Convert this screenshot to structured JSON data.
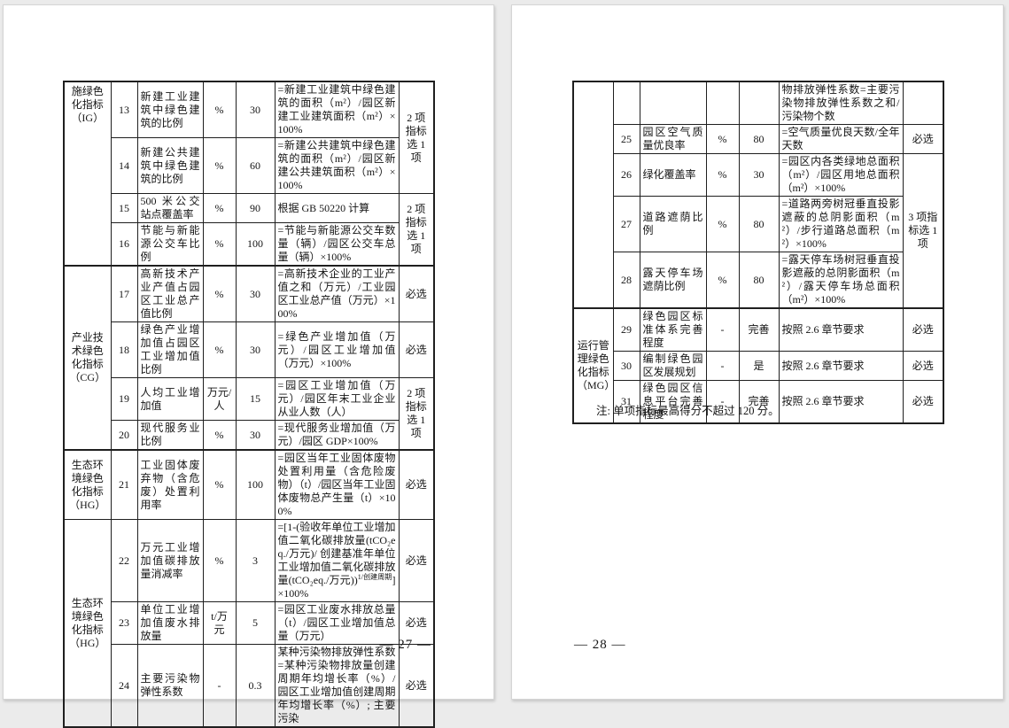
{
  "pages": {
    "left": {
      "page_number": "— 27 —",
      "table": {
        "rows": [
          {
            "cat": {
              "text": "施绿色化指标（IG）",
              "span": 4,
              "align": "top"
            },
            "num": "13",
            "name": "新建工业建筑中绿色建筑的比例",
            "unit": "%",
            "value": "30",
            "formula": "=新建工业建筑中绿色建筑的面积（m²）/园区新建工业建筑面积（m²）×100%",
            "sel": {
              "text": "2 项指标选 1 项",
              "span": 2
            }
          },
          {
            "num": "14",
            "name": "新建公共建筑中绿色建筑的比例",
            "unit": "%",
            "value": "60",
            "formula": "=新建公共建筑中绿色建筑的面积（m²）/园区新建公共建筑面积（m²）×100%"
          },
          {
            "num": "15",
            "name": "500 米公交站点覆盖率",
            "unit": "%",
            "value": "90",
            "formula": "根据 GB 50220 计算",
            "sel": {
              "text": "2 项指标选 1 项",
              "span": 2
            }
          },
          {
            "num": "16",
            "name": "节能与新能源公交车比例",
            "unit": "%",
            "value": "100",
            "formula": "=节能与新能源公交车数量（辆）/园区公交车总量（辆）×100%"
          },
          {
            "thick": true,
            "cat": {
              "text": "产业技术绿色化指标（CG）",
              "span": 4
            },
            "num": "17",
            "name": "高新技术产业产值占园区工业总产值比例",
            "unit": "%",
            "value": "30",
            "formula": "=高新技术企业的工业产值之和（万元）/工业园区工业总产值（万元）×100%",
            "sel": {
              "text": "必选"
            }
          },
          {
            "num": "18",
            "name": "绿色产业增加值占园区工业增加值比例",
            "unit": "%",
            "value": "30",
            "formula": "=绿色产业增加值（万元）/园区工业增加值（万元）×100%",
            "sel": {
              "text": "必选"
            }
          },
          {
            "num": "19",
            "name": "人均工业增加值",
            "unit": "万元/人",
            "value": "15",
            "formula": "=园区工业增加值（万元）/园区年末工业企业从业人数（人）",
            "sel": {
              "text": "2 项指标选 1 项",
              "span": 2
            }
          },
          {
            "num": "20",
            "name": "现代服务业比例",
            "unit": "%",
            "value": "30",
            "formula": "=现代服务业增加值（万元）/园区 GDP×100%"
          },
          {
            "thick": true,
            "cat": {
              "text": "生态环境绿色化指标（HG）",
              "span": 1
            },
            "num": "21",
            "name": "工业固体废弃物（含危废）处置利用率",
            "unit": "%",
            "value": "100",
            "formula": "=园区当年工业固体废物处置利用量（含危险废物）（t）/园区当年工业固体废物总产生量（t）×100%",
            "sel": {
              "text": "必选"
            }
          },
          {
            "cat": {
              "text": "生态环境绿色化指标（HG）",
              "span": 3
            },
            "num": "22",
            "name": "万元工业增加值碳排放量消减率",
            "unit": "%",
            "value": "3",
            "formula": "=[1-(验收年单位工业增加值二氧化碳排放量(tCO₂eq./万元)/ 创建基准年单位工业增加值二氧化碳排放量(tCO₂eq./万元))^{1/创建周期}]×100%",
            "sel": {
              "text": "必选"
            }
          },
          {
            "num": "23",
            "name": "单位工业增加值废水排放量",
            "unit": "t/万元",
            "value": "5",
            "formula": "=园区工业废水排放总量（t）/园区工业增加值总量（万元）",
            "sel": {
              "text": "必选"
            }
          },
          {
            "num": "24",
            "name": "主要污染物弹性系数",
            "unit": "-",
            "value": "0.3",
            "formula": "某种污染物排放弹性系数=某种污染物排放量创建周期年均增长率（%）/园区工业增加值创建周期年均增长率（%）; 主要污染",
            "sel": {
              "text": "必选"
            }
          }
        ]
      }
    },
    "right": {
      "page_number": "— 28 —",
      "note": "注: 单项指标最高得分不超过 120 分。",
      "table": {
        "rows": [
          {
            "cat": {
              "text": "",
              "span": 5
            },
            "num": "",
            "name": "",
            "unit": "",
            "value": "",
            "formula": "物排放弹性系数=主要污染物排放弹性系数之和/污染物个数",
            "sel": {
              "text": ""
            }
          },
          {
            "num": "25",
            "name": "园区空气质量优良率",
            "unit": "%",
            "value": "80",
            "formula": "=空气质量优良天数/全年天数",
            "sel": {
              "text": "必选"
            }
          },
          {
            "num": "26",
            "name": "绿化覆盖率",
            "unit": "%",
            "value": "30",
            "formula": "=园区内各类绿地总面积（m²）/园区用地总面积（m²）×100%",
            "sel": {
              "text": "3 项指标选 1 项",
              "span": 3
            }
          },
          {
            "num": "27",
            "name": "道路遮荫比例",
            "unit": "%",
            "value": "80",
            "formula": "=道路两旁树冠垂直投影遮蔽的总阴影面积（m²）/步行道路总面积（m²）×100%"
          },
          {
            "num": "28",
            "name": "露天停车场遮荫比例",
            "unit": "%",
            "value": "80",
            "formula": "=露天停车场树冠垂直投影遮蔽的总阴影面积（m²）/露天停车场总面积（m²）×100%"
          },
          {
            "thick": true,
            "cat": {
              "text": "运行管理绿色化指标（MG）",
              "span": 3
            },
            "num": "29",
            "name": "绿色园区标准体系完善程度",
            "unit": "-",
            "value": "完善",
            "formula": "按照 2.6 章节要求",
            "sel": {
              "text": "必选"
            }
          },
          {
            "num": "30",
            "name": "编制绿色园区发展规划",
            "unit": "-",
            "value": "是",
            "formula": "按照 2.6 章节要求",
            "sel": {
              "text": "必选"
            }
          },
          {
            "num": "31",
            "name": "绿色园区信息平台完善程度",
            "unit": "-",
            "value": "完善",
            "formula": "按照 2.6 章节要求",
            "sel": {
              "text": "必选"
            }
          }
        ]
      }
    }
  }
}
